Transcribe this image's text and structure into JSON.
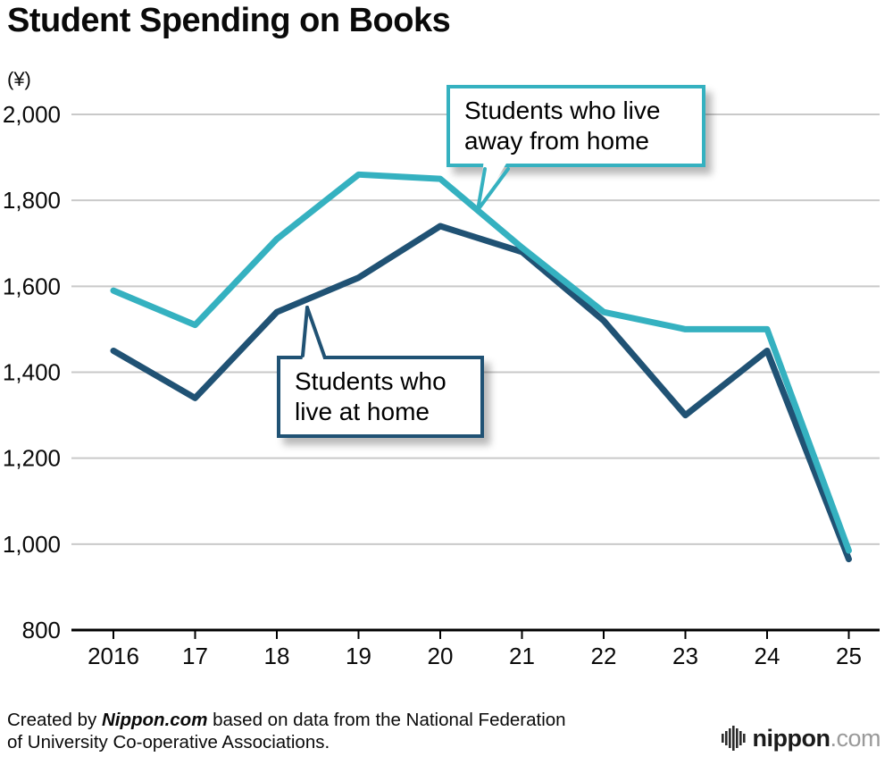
{
  "title": "Student Spending on Books",
  "chart_data": {
    "type": "line",
    "title": "Student Spending on Books",
    "ylabel": "(¥)",
    "xlabel": "",
    "categories": [
      "2016",
      "17",
      "18",
      "19",
      "20",
      "21",
      "22",
      "23",
      "24",
      "25"
    ],
    "series": [
      {
        "name": "Students who live away from home",
        "color": "#35b1c0",
        "values": [
          1590,
          1510,
          1710,
          1860,
          1850,
          1690,
          1540,
          1500,
          1500,
          985
        ]
      },
      {
        "name": "Students who live at home",
        "color": "#205274",
        "values": [
          1450,
          1340,
          1540,
          1620,
          1740,
          1680,
          1520,
          1300,
          1450,
          965
        ]
      }
    ],
    "ylim": [
      800,
      2000
    ],
    "ytick_step": 200,
    "yticks": [
      "2,000",
      "1,800",
      "1,600",
      "1,400",
      "1,200",
      "1,000",
      "800"
    ],
    "grid": "horizontal",
    "grid_color": "#c9c9c9",
    "axis_color": "#000000",
    "legend_position": "callouts"
  },
  "callouts": [
    {
      "label": "Students who live away from home"
    },
    {
      "label": "Students who live at home"
    }
  ],
  "footer": {
    "prefix": "Created by ",
    "brand": "Nippon.com",
    "suffix": " based on data from the National Federation",
    "line2": "of University Co-operative Associations."
  },
  "logo": {
    "name": "nippon",
    "tld": ".com"
  }
}
